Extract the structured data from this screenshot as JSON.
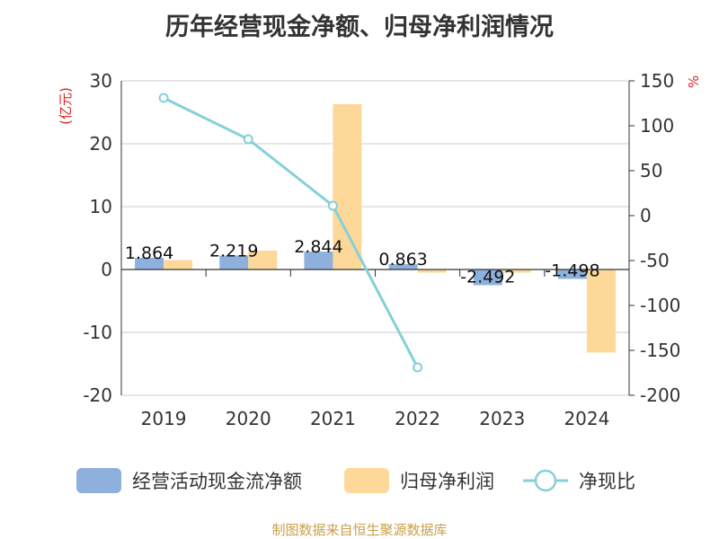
{
  "chart_data": {
    "type": "bar",
    "title": "历年经营现金净额、归母净利润情况",
    "categories": [
      "2019",
      "2020",
      "2021",
      "2022",
      "2023",
      "2024"
    ],
    "series": [
      {
        "name": "经营活动现金流净额",
        "type": "bar",
        "axis": "left",
        "color": "#8eb0dc",
        "values": [
          1.864,
          2.219,
          2.844,
          0.863,
          -2.492,
          -1.498
        ],
        "labels": [
          "1.864",
          "2.219",
          "2.844",
          "0.863",
          "-2.492",
          "-1.498"
        ]
      },
      {
        "name": "归母净利润",
        "type": "bar",
        "axis": "left",
        "color": "#fdd898",
        "values": [
          1.5,
          3.0,
          26.3,
          -0.5,
          -0.5,
          -13.2
        ]
      },
      {
        "name": "净现比",
        "type": "line",
        "axis": "right",
        "color": "#86d0d8",
        "values": [
          131,
          85,
          11,
          -169,
          null,
          null
        ]
      }
    ],
    "y_left": {
      "label": "(亿元)",
      "ylim": [
        -20,
        30
      ],
      "ticks": [
        30,
        20,
        10,
        0,
        -10,
        -20
      ]
    },
    "y_right": {
      "label": "%",
      "ylim": [
        -200,
        150
      ],
      "ticks": [
        150,
        100,
        50,
        0,
        -50,
        -100,
        -150,
        -200
      ]
    }
  },
  "source": "制图数据来自恒生聚源数据库"
}
